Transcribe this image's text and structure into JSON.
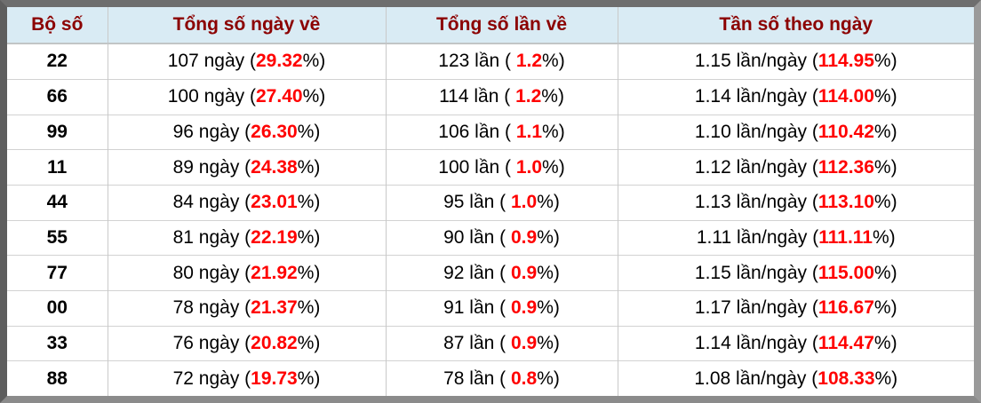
{
  "table": {
    "headers": [
      "Bộ số",
      "Tổng số ngày về",
      "Tổng số lần về",
      "Tần số theo ngày"
    ],
    "rows": [
      {
        "cells": [
          [
            {
              "text": "22"
            }
          ],
          [
            {
              "text": "107 ngày ("
            },
            {
              "text": "29.32",
              "red": true
            },
            {
              "text": "%)"
            }
          ],
          [
            {
              "text": "123 lần ( "
            },
            {
              "text": "1.2",
              "red": true
            },
            {
              "text": "%)"
            }
          ],
          [
            {
              "text": "1.15 lần/ngày ("
            },
            {
              "text": "114.95",
              "red": true
            },
            {
              "text": "%)"
            }
          ]
        ]
      },
      {
        "cells": [
          [
            {
              "text": "66"
            }
          ],
          [
            {
              "text": "100 ngày ("
            },
            {
              "text": "27.40",
              "red": true
            },
            {
              "text": "%)"
            }
          ],
          [
            {
              "text": "114 lần ( "
            },
            {
              "text": "1.2",
              "red": true
            },
            {
              "text": "%)"
            }
          ],
          [
            {
              "text": "1.14 lần/ngày ("
            },
            {
              "text": "114.00",
              "red": true
            },
            {
              "text": "%)"
            }
          ]
        ]
      },
      {
        "cells": [
          [
            {
              "text": "99"
            }
          ],
          [
            {
              "text": "96 ngày ("
            },
            {
              "text": "26.30",
              "red": true
            },
            {
              "text": "%)"
            }
          ],
          [
            {
              "text": "106 lần ( "
            },
            {
              "text": "1.1",
              "red": true
            },
            {
              "text": "%)"
            }
          ],
          [
            {
              "text": "1.10 lần/ngày ("
            },
            {
              "text": "110.42",
              "red": true
            },
            {
              "text": "%)"
            }
          ]
        ]
      },
      {
        "cells": [
          [
            {
              "text": "11"
            }
          ],
          [
            {
              "text": "89 ngày ("
            },
            {
              "text": "24.38",
              "red": true
            },
            {
              "text": "%)"
            }
          ],
          [
            {
              "text": "100 lần ( "
            },
            {
              "text": "1.0",
              "red": true
            },
            {
              "text": "%)"
            }
          ],
          [
            {
              "text": "1.12 lần/ngày ("
            },
            {
              "text": "112.36",
              "red": true
            },
            {
              "text": "%)"
            }
          ]
        ]
      },
      {
        "cells": [
          [
            {
              "text": "44"
            }
          ],
          [
            {
              "text": "84 ngày ("
            },
            {
              "text": "23.01",
              "red": true
            },
            {
              "text": "%)"
            }
          ],
          [
            {
              "text": "95 lần ( "
            },
            {
              "text": "1.0",
              "red": true
            },
            {
              "text": "%)"
            }
          ],
          [
            {
              "text": "1.13 lần/ngày ("
            },
            {
              "text": "113.10",
              "red": true
            },
            {
              "text": "%)"
            }
          ]
        ]
      },
      {
        "cells": [
          [
            {
              "text": "55"
            }
          ],
          [
            {
              "text": "81 ngày ("
            },
            {
              "text": "22.19",
              "red": true
            },
            {
              "text": "%)"
            }
          ],
          [
            {
              "text": "90 lần ( "
            },
            {
              "text": "0.9",
              "red": true
            },
            {
              "text": "%)"
            }
          ],
          [
            {
              "text": "1.11 lần/ngày ("
            },
            {
              "text": "111.11",
              "red": true
            },
            {
              "text": "%)"
            }
          ]
        ]
      },
      {
        "cells": [
          [
            {
              "text": "77"
            }
          ],
          [
            {
              "text": "80 ngày ("
            },
            {
              "text": "21.92",
              "red": true
            },
            {
              "text": "%)"
            }
          ],
          [
            {
              "text": "92 lần ( "
            },
            {
              "text": "0.9",
              "red": true
            },
            {
              "text": "%)"
            }
          ],
          [
            {
              "text": "1.15 lần/ngày ("
            },
            {
              "text": "115.00",
              "red": true
            },
            {
              "text": "%)"
            }
          ]
        ]
      },
      {
        "cells": [
          [
            {
              "text": "00"
            }
          ],
          [
            {
              "text": "78 ngày ("
            },
            {
              "text": "21.37",
              "red": true
            },
            {
              "text": "%)"
            }
          ],
          [
            {
              "text": "91 lần ( "
            },
            {
              "text": "0.9",
              "red": true
            },
            {
              "text": "%)"
            }
          ],
          [
            {
              "text": "1.17 lần/ngày ("
            },
            {
              "text": "116.67",
              "red": true
            },
            {
              "text": "%)"
            }
          ]
        ]
      },
      {
        "cells": [
          [
            {
              "text": "33"
            }
          ],
          [
            {
              "text": "76 ngày ("
            },
            {
              "text": "20.82",
              "red": true
            },
            {
              "text": "%)"
            }
          ],
          [
            {
              "text": "87 lần ( "
            },
            {
              "text": "0.9",
              "red": true
            },
            {
              "text": "%)"
            }
          ],
          [
            {
              "text": "1.14 lần/ngày ("
            },
            {
              "text": "114.47",
              "red": true
            },
            {
              "text": "%)"
            }
          ]
        ]
      },
      {
        "cells": [
          [
            {
              "text": "88"
            }
          ],
          [
            {
              "text": "72 ngày ("
            },
            {
              "text": "19.73",
              "red": true
            },
            {
              "text": "%)"
            }
          ],
          [
            {
              "text": "78 lần ( "
            },
            {
              "text": "0.8",
              "red": true
            },
            {
              "text": "%)"
            }
          ],
          [
            {
              "text": "1.08 lần/ngày ("
            },
            {
              "text": "108.33",
              "red": true
            },
            {
              "text": "%)"
            }
          ]
        ]
      }
    ]
  },
  "colors": {
    "header_background": "#d9ebf4",
    "header_text": "#8b0000",
    "percent_highlight": "#ff0000",
    "body_text": "#000000",
    "grid_line": "#c9c9c9",
    "frame_gray_dark": "#5e5e5e",
    "frame_gray_light": "#9a9a9a"
  }
}
